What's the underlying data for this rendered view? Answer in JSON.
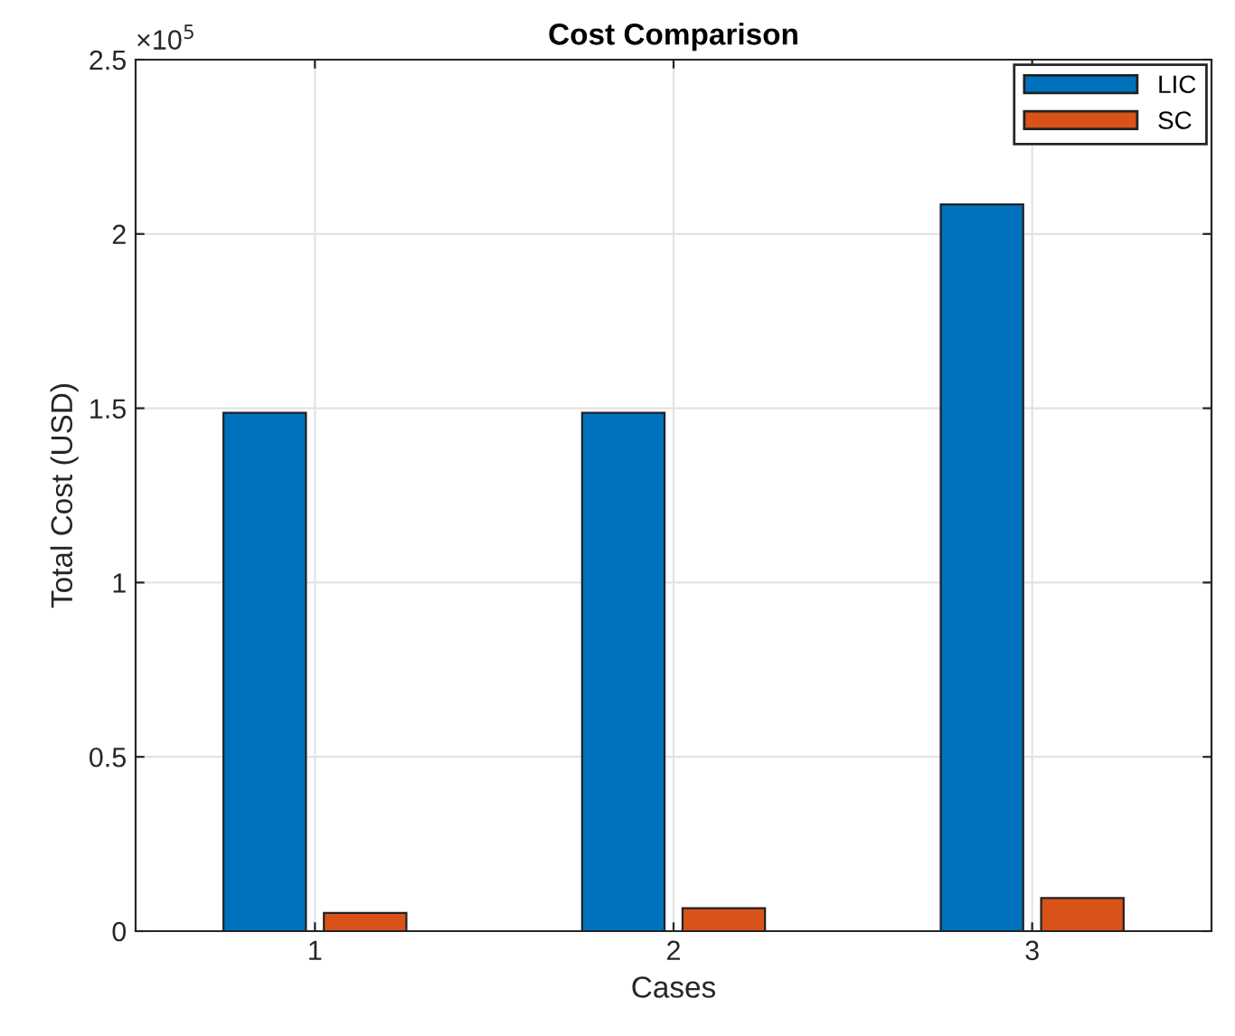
{
  "chart_data": {
    "type": "bar",
    "title": "Cost Comparison",
    "xlabel": "Cases",
    "ylabel": "Total Cost (USD)",
    "categories": [
      "1",
      "2",
      "3"
    ],
    "series": [
      {
        "name": "LIC",
        "color": "#0072bd",
        "values": [
          1.487,
          1.487,
          2.085
        ]
      },
      {
        "name": "SC",
        "color": "#d95319",
        "values": [
          0.052,
          0.066,
          0.095
        ]
      }
    ],
    "ylim": [
      0,
      2.5
    ],
    "yticks": [
      0,
      0.5,
      1,
      1.5,
      2,
      2.5
    ],
    "annotations": [
      "×10$^{5}$"
    ],
    "grid": true,
    "legend": "top right"
  }
}
